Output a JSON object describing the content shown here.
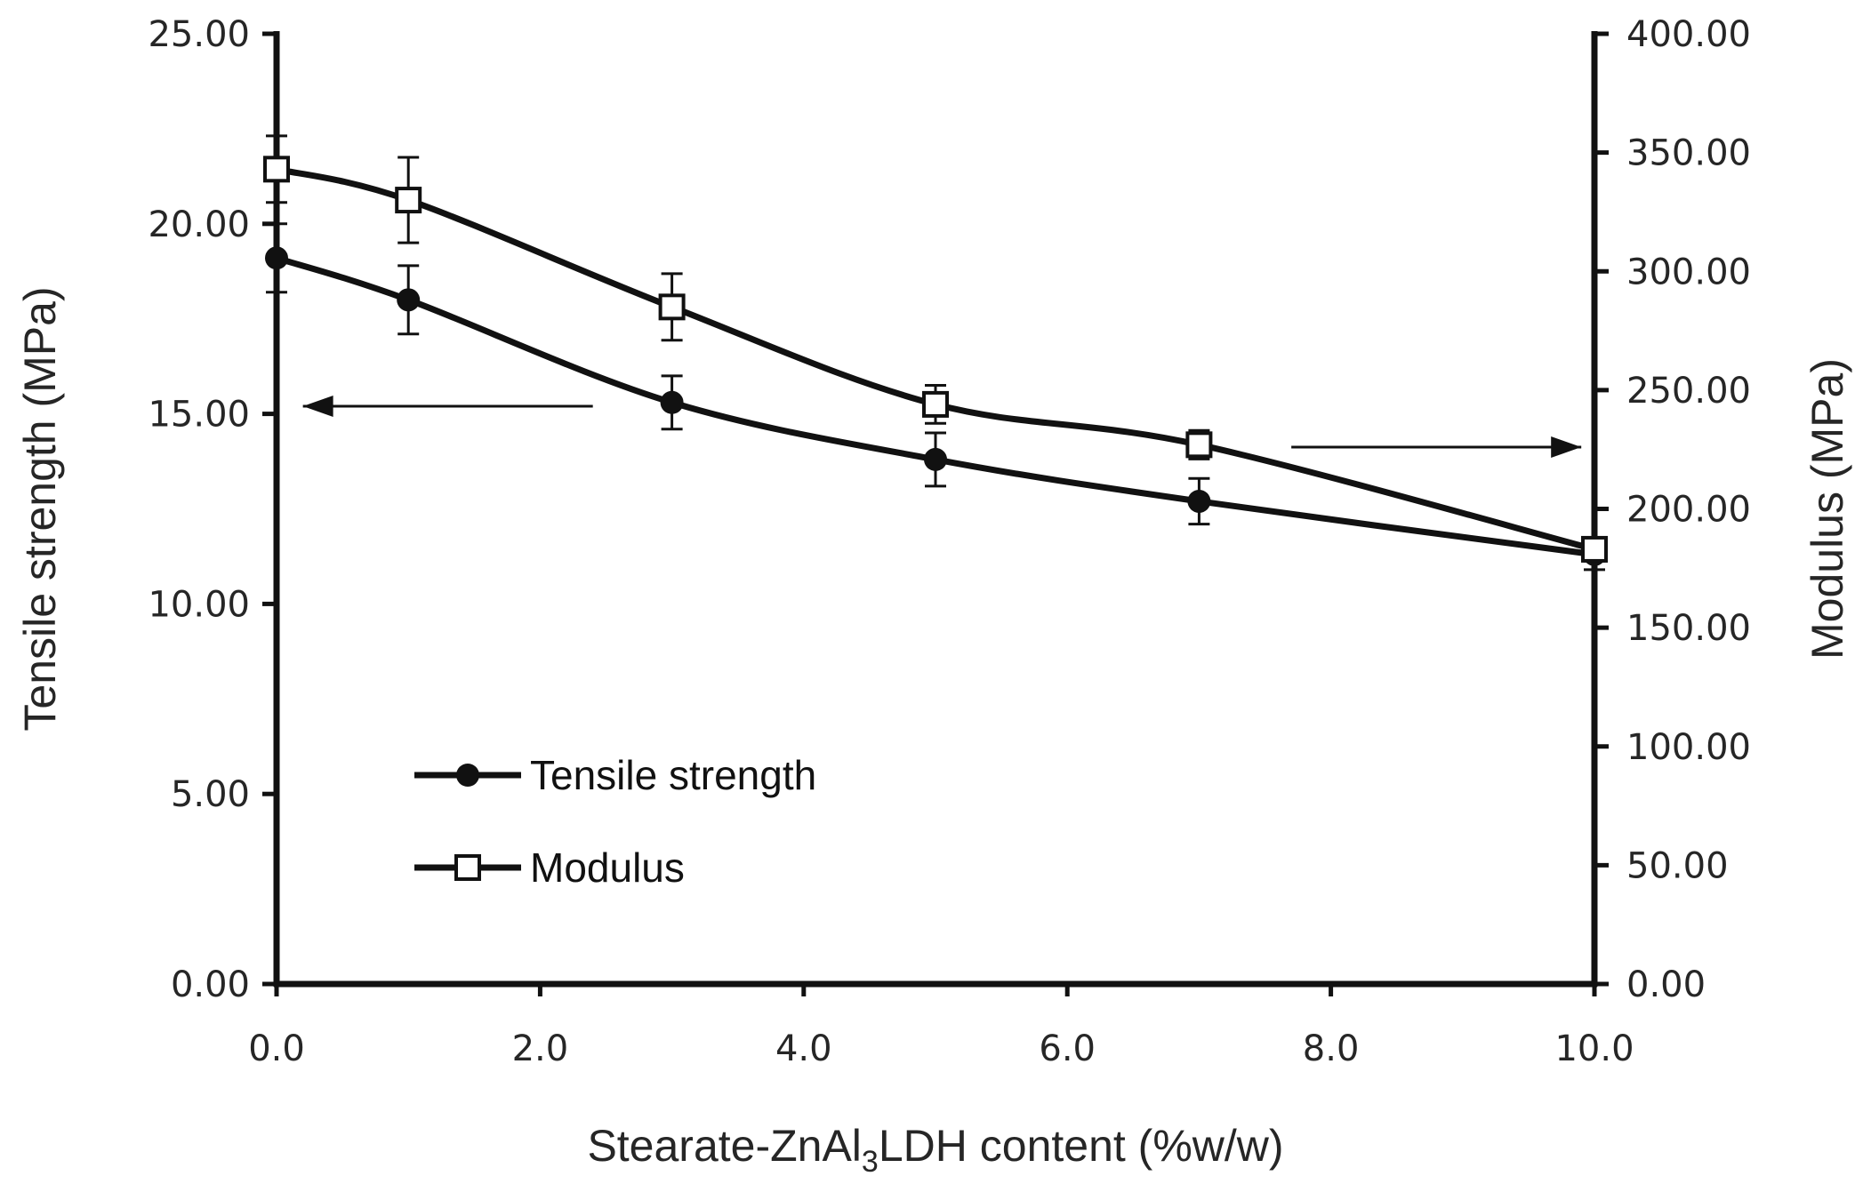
{
  "chart_data": {
    "type": "line",
    "title": "",
    "xlabel": "Stearate-ZnAl",
    "xlabel_subscript": "3",
    "xlabel_suffix": "LDH content (%w/w)",
    "ylabel_left": "Tensile strength (MPa)",
    "ylabel_right": "Modulus  (MPa)",
    "x": [
      0,
      1,
      3,
      5,
      7,
      10
    ],
    "xlim": [
      0,
      10
    ],
    "ylim_left": [
      0,
      25
    ],
    "ylim_right": [
      0,
      400
    ],
    "x_ticks": [
      "0.0",
      "2.0",
      "4.0",
      "6.0",
      "8.0",
      "10.0"
    ],
    "x_tick_values": [
      0,
      2,
      4,
      6,
      8,
      10
    ],
    "y_left_ticks": [
      "0.00",
      "5.00",
      "10.00",
      "15.00",
      "20.00",
      "25.00"
    ],
    "y_left_tick_values": [
      0,
      5,
      10,
      15,
      20,
      25
    ],
    "y_right_ticks": [
      "0.00",
      "50.00",
      "100.00",
      "150.00",
      "200.00",
      "250.00",
      "300.00",
      "350.00",
      "400.00"
    ],
    "y_right_tick_values": [
      0,
      50,
      100,
      150,
      200,
      250,
      300,
      350,
      400
    ],
    "series": [
      {
        "name": "Tensile strength",
        "axis": "left",
        "marker": "filled-circle",
        "values": [
          19.1,
          18.0,
          15.3,
          13.8,
          12.7,
          11.3
        ],
        "errors": [
          0.9,
          0.9,
          0.7,
          0.7,
          0.6,
          0.4
        ]
      },
      {
        "name": "Modulus",
        "axis": "right",
        "marker": "open-square",
        "values": [
          343,
          330,
          285,
          244,
          227,
          183
        ],
        "errors": [
          14,
          18,
          14,
          8,
          6,
          5
        ]
      }
    ],
    "annotations": [
      {
        "type": "arrow",
        "direction": "left",
        "target_axis": "left",
        "y": 15.2,
        "x_from": 2.4,
        "x_to": 0.2
      },
      {
        "type": "arrow",
        "direction": "right",
        "target_axis": "right",
        "y": 226,
        "x_from": 7.7,
        "x_to": 9.9
      }
    ],
    "legend": {
      "position": "lower-left"
    },
    "grid": false,
    "colors": {
      "line": "#111111",
      "axis": "#111111",
      "text": "#262626",
      "marker_fill_open": "#ffffff"
    }
  }
}
